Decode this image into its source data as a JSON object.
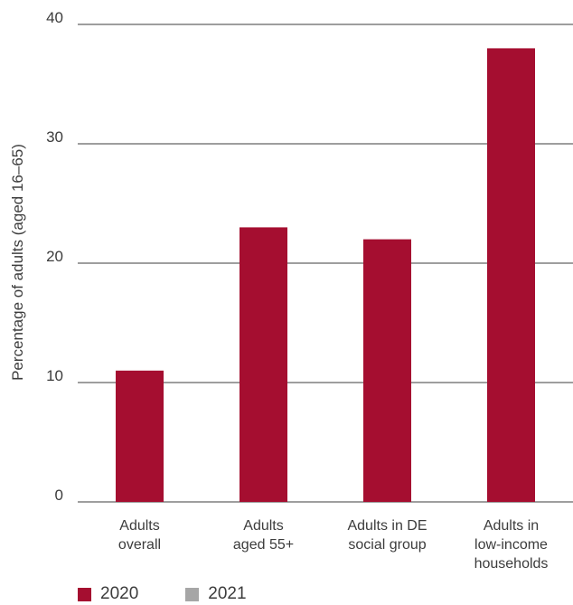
{
  "chart_data": {
    "type": "bar",
    "categories": [
      [
        "Adults",
        "overall"
      ],
      [
        "Adults",
        "aged 55+"
      ],
      [
        "Adults in DE",
        "social group"
      ],
      [
        "Adults in",
        "low-income",
        "households"
      ]
    ],
    "series": [
      {
        "name": "2020",
        "color": "#a50e30",
        "values": [
          11,
          23,
          22,
          38
        ]
      },
      {
        "name": "2021",
        "color": "#a6a6a6",
        "values": [
          null,
          null,
          null,
          null
        ]
      }
    ],
    "ylabel": "Percentage of adults (aged 16–65)",
    "ylim": [
      0,
      40
    ],
    "yticks": [
      0,
      10,
      20,
      30,
      40
    ],
    "grid": true,
    "legend_position": "bottom-left"
  }
}
